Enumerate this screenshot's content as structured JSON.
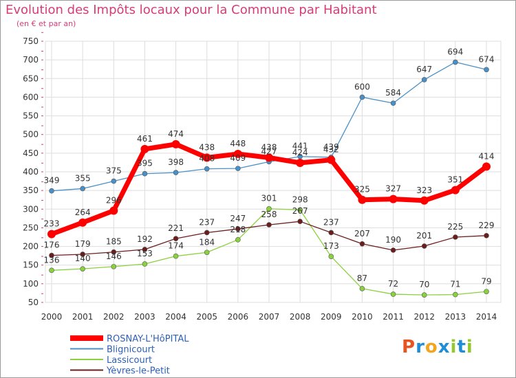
{
  "title": "Evolution des Impôts locaux pour la Commune par Habitant",
  "subtitle": "(en € et par an)",
  "logo": {
    "parts": [
      {
        "text": "P",
        "color": "#e8541f"
      },
      {
        "text": "r",
        "color": "#1e8fd6"
      },
      {
        "text": "o",
        "color": "#f2a51f"
      },
      {
        "text": "x",
        "color": "#1e8fd6"
      },
      {
        "text": "i",
        "color": "#94c82f"
      },
      {
        "text": "t",
        "color": "#1e8fd6"
      },
      {
        "text": "i",
        "color": "#94c82f"
      }
    ]
  },
  "chart_data": {
    "type": "line",
    "x": [
      "2000",
      "2001",
      "2002",
      "2003",
      "2004",
      "2005",
      "2006",
      "2007",
      "2008",
      "2009",
      "2010",
      "2011",
      "2012",
      "2013",
      "2014"
    ],
    "ylim": [
      50,
      750
    ],
    "yticks": [
      50,
      100,
      150,
      200,
      250,
      300,
      350,
      400,
      450,
      500,
      550,
      600,
      650,
      700,
      750
    ],
    "grid": true,
    "legend_position": "bottom-left",
    "series": [
      {
        "name": "ROSNAY-L'HôPITAL",
        "color": "#ff0000",
        "values": [
          233,
          264,
          296,
          461,
          474,
          438,
          448,
          438,
          424,
          432,
          325,
          327,
          323,
          351,
          414
        ]
      },
      {
        "name": "Blignicourt",
        "color": "#4a90c8",
        "values": [
          349,
          355,
          375,
          395,
          398,
          408,
          409,
          427,
          441,
          439,
          600,
          584,
          647,
          694,
          674
        ]
      },
      {
        "name": "Lassicourt",
        "color": "#8bd13e",
        "values": [
          136,
          140,
          146,
          153,
          174,
          184,
          218,
          301,
          298,
          173,
          87,
          72,
          70,
          71,
          79
        ]
      },
      {
        "name": "Yèvres-le-Petit",
        "color": "#6b1d1d",
        "values": [
          176,
          179,
          185,
          192,
          221,
          237,
          247,
          258,
          267,
          237,
          207,
          190,
          201,
          225,
          229
        ]
      }
    ]
  }
}
